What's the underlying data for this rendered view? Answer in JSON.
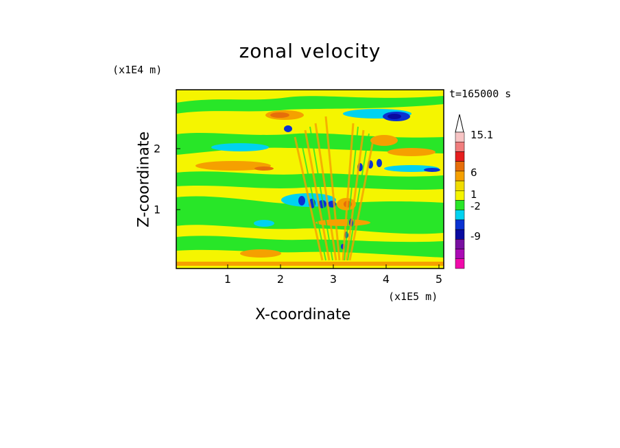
{
  "chart_data": {
    "type": "heatmap",
    "title": "zonal velocity",
    "xlabel": "X-coordinate",
    "ylabel": "Z-coordinate",
    "x_unit": "(x1E5 m)",
    "z_unit": "(x1E4 m)",
    "time_label": "t=165000 s",
    "xlim": [
      0,
      5.15
    ],
    "ylim": [
      0,
      2.95
    ],
    "x_ticks": [
      "1",
      "2",
      "3",
      "4",
      "5"
    ],
    "y_ticks": [
      "1",
      "2"
    ],
    "colorbar": {
      "labels": [
        "15.1",
        "6",
        "1",
        "-2",
        "-9"
      ],
      "colors": [
        "#f7c4c4",
        "#f07d7d",
        "#e61e1e",
        "#e66e0a",
        "#f5a000",
        "#f0dc00",
        "#f5f500",
        "#28e628",
        "#00d2f0",
        "#0a32d2",
        "#0a0aa0",
        "#780fa0",
        "#aa0ab4",
        "#f00aaa"
      ]
    },
    "colors": {
      "background_field": "#f5f500",
      "frame": "#000000"
    }
  }
}
